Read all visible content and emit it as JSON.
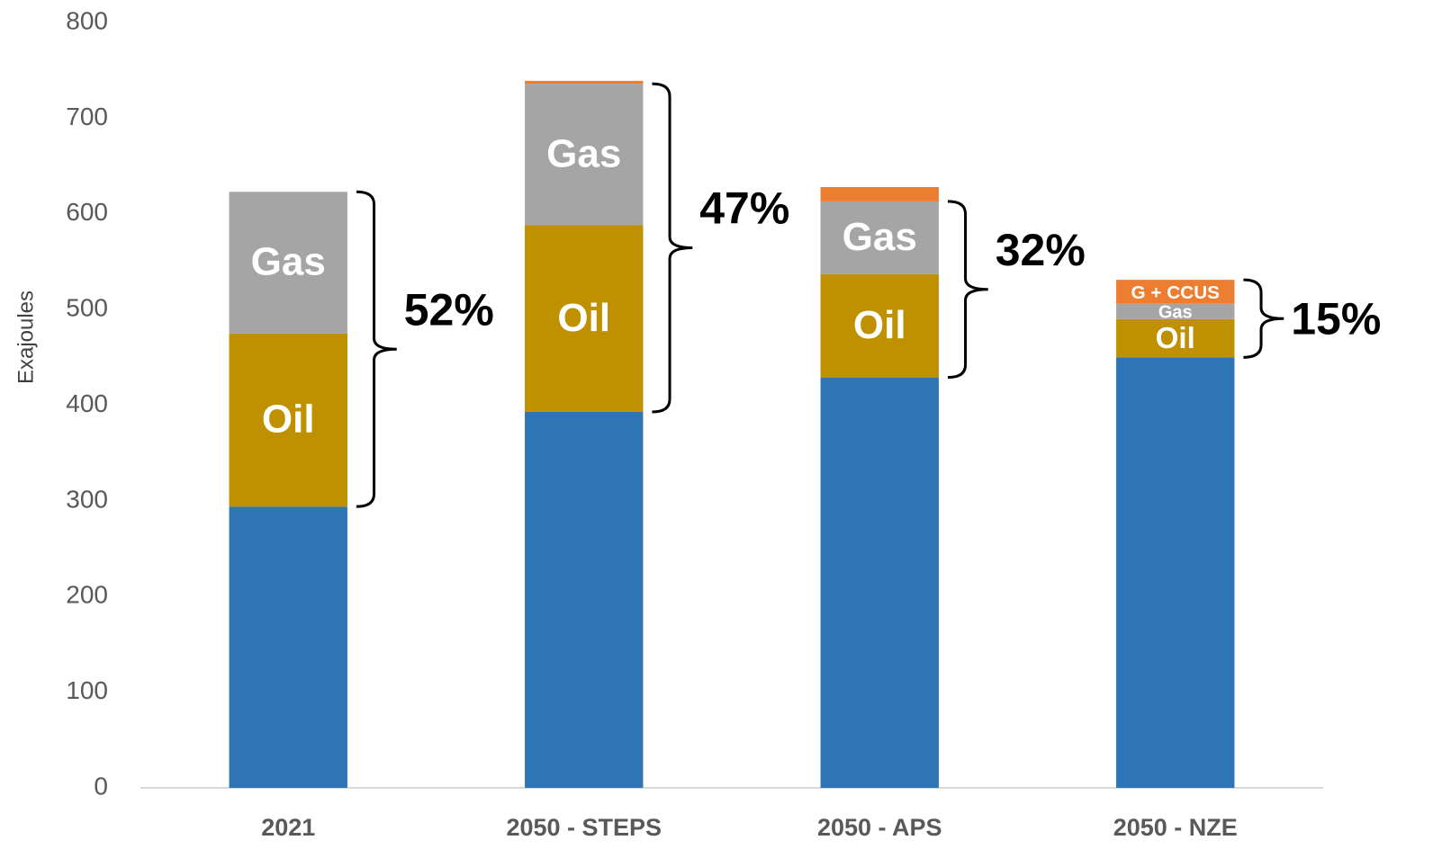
{
  "chart_data": {
    "type": "stacked_bar",
    "y_label": "Exajoules",
    "categories": [
      "2021",
      "2050 - STEPS",
      "2050 - APS",
      "2050 - NZE"
    ],
    "series": [
      {
        "color": "#2e75b6",
        "values": [
          294,
          393,
          429,
          450
        ]
      },
      {
        "name": "Oil",
        "color": "#bf9000",
        "values": [
          181,
          195,
          108,
          40
        ]
      },
      {
        "name": "Gas",
        "color": "#a5a5a5",
        "values": [
          148,
          148,
          76,
          16
        ]
      },
      {
        "name": "G + CCUS",
        "color": "#ed7d31",
        "values": [
          0,
          3,
          15,
          25
        ],
        "show_label": [
          false,
          false,
          false,
          true
        ]
      }
    ],
    "annotations": [
      {
        "text": "52%",
        "category": 0,
        "series_span": [
          1,
          2
        ]
      },
      {
        "text": "47%",
        "category": 1,
        "series_span": [
          1,
          2
        ]
      },
      {
        "text": "32%",
        "category": 2,
        "series_span": [
          1,
          2
        ]
      },
      {
        "text": "15%",
        "category": 3,
        "series_span": [
          1,
          3
        ]
      }
    ],
    "ylim": [
      0,
      800
    ],
    "yticks": [
      0,
      100,
      200,
      300,
      400,
      500,
      600,
      700,
      800
    ],
    "grid": false
  }
}
